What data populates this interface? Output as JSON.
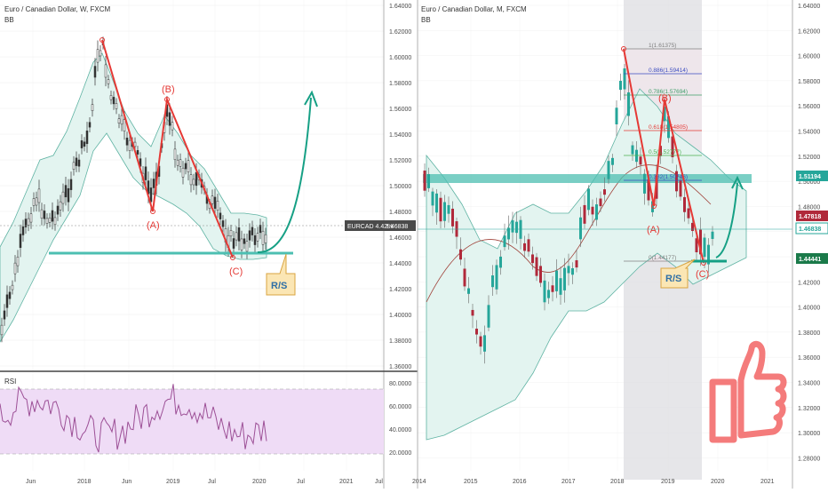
{
  "colors": {
    "up": "#26a69a",
    "down": "#ef5350",
    "teal": "#3fb39b",
    "bandFill": "#e3f4f0",
    "bandLine": "#5fb3a3",
    "zone": "#4dbfb2",
    "wave": "#e53935",
    "rsi": "#9c4f96",
    "rsiBand": "#efdcf6",
    "grid": "#dddddd",
    "axisText": "#4a4a4a",
    "calloutFill": "#fbe6b4",
    "calloutText": "#2f6fa6",
    "thumb": "#f47b7b",
    "fibBand": "#e3e3ea"
  },
  "left_panel": {
    "title": "Euro / Canadian Dollar, W, FXCM",
    "indicator": "BB",
    "x_labels": [
      "Jun",
      "2018",
      "Jun",
      "2019",
      "Jul",
      "2020",
      "Jul",
      "2021",
      "Jul"
    ],
    "y_labels": [
      "1.64000",
      "1.62000",
      "1.60000",
      "1.58000",
      "1.56000",
      "1.54000",
      "1.52000",
      "1.50000",
      "1.48000",
      "1.46000",
      "1.44000",
      "1.42000",
      "1.40000",
      "1.38000",
      "1.36000"
    ],
    "price_tag_label": "EURCAD 4.42%",
    "price_tag_value": "1.46838",
    "wave_labels": [
      "(A)",
      "(B)",
      "(C)"
    ],
    "callout": "R/S",
    "rsi": {
      "label": "RSI",
      "y_labels": [
        "80.0000",
        "60.0000",
        "40.0000",
        "20.0000"
      ]
    }
  },
  "right_panel": {
    "title": "Euro / Canadian Dollar, M, FXCM",
    "indicator": "BB",
    "x_labels": [
      "2014",
      "2015",
      "2016",
      "2017",
      "2018",
      "2019",
      "2020",
      "2021"
    ],
    "y_labels": [
      "1.64000",
      "1.62000",
      "1.60000",
      "1.58000",
      "1.56000",
      "1.54000",
      "1.52000",
      "1.50000",
      "1.48000",
      "1.46000",
      "1.44000",
      "1.42000",
      "1.40000",
      "1.38000",
      "1.36000",
      "1.34000",
      "1.32000",
      "1.30000",
      "1.28000"
    ],
    "price_tags": [
      "1.51194",
      "1.47818",
      "1.46838",
      "1.44441"
    ],
    "fib_levels": [
      "1(1.61375)",
      "0.886(1.59414)",
      "0.786(1.57694)",
      "0.618(1.54805)",
      "0.5(1.52777)",
      "0.382(1.50746)",
      "0(1.44177)"
    ],
    "wave_labels": [
      "(A)",
      "(B)",
      "(C)"
    ],
    "callout": "R/S"
  },
  "chart_data": [
    {
      "type": "line",
      "title": "Euro / Canadian Dollar, W, FXCM",
      "xlabel": "",
      "ylabel": "",
      "x": [
        "2017-05",
        "2017-09",
        "2018-01",
        "2018-04",
        "2018-08",
        "2018-10",
        "2019-01",
        "2019-04",
        "2019-08",
        "2019-11",
        "2020-01"
      ],
      "series": [
        {
          "values": [
            1.39,
            1.47,
            1.56,
            1.62,
            1.53,
            1.48,
            1.57,
            1.5,
            1.44,
            1.46,
            1.468
          ]
        }
      ],
      "ylim": [
        1.355,
        1.645
      ],
      "grid": true,
      "annotations": [
        "(A)",
        "(B)",
        "(C)",
        "R/S",
        "EURCAD 4.42%"
      ]
    },
    {
      "type": "line",
      "title": "RSI",
      "x": [
        "2017-05",
        "2020-01"
      ],
      "series": [
        {
          "name": "RSI",
          "values": [
            45,
            60
          ]
        }
      ],
      "ylim": [
        15,
        85
      ],
      "grid": true
    },
    {
      "type": "line",
      "title": "Euro / Canadian Dollar, M, FXCM",
      "xlabel": "",
      "ylabel": "",
      "x": [
        "2014-01",
        "2014-06",
        "2015-01",
        "2015-07",
        "2016-01",
        "2016-06",
        "2017-01",
        "2017-06",
        "2018-01",
        "2018-03",
        "2018-10",
        "2019-01",
        "2019-05",
        "2019-09",
        "2020-01"
      ],
      "series": [
        {
          "values": [
            1.47,
            1.5,
            1.39,
            1.42,
            1.53,
            1.46,
            1.4,
            1.47,
            1.54,
            1.61,
            1.48,
            1.56,
            1.5,
            1.44,
            1.468
          ]
        }
      ],
      "ylim": [
        1.275,
        1.645
      ],
      "grid": true,
      "annotations": [
        "(A)",
        "(B)",
        "(C)",
        "R/S"
      ]
    }
  ]
}
